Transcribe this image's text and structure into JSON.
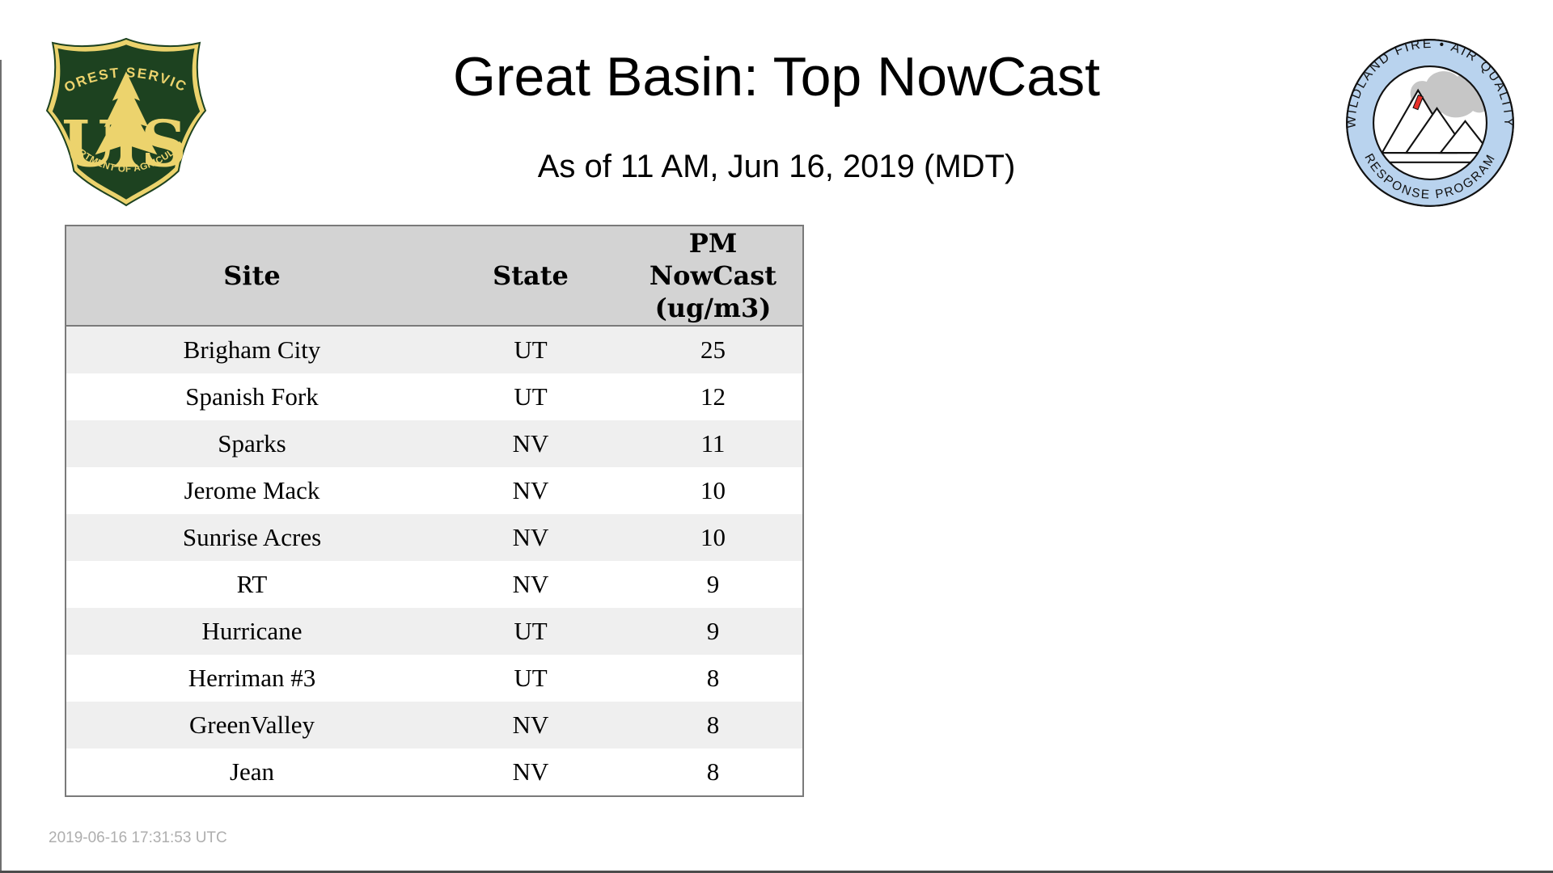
{
  "page": {
    "title": "Great Basin: Top NowCast",
    "subtitle": "As of 11 AM, Jun 16, 2019 (MDT)",
    "footer_timestamp": "2019-06-16 17:31:53 UTC"
  },
  "logos": {
    "usfs": {
      "top_text": "FOREST SERVICE",
      "letter_left": "U",
      "letter_right": "S",
      "bottom_text": "DEPARTMENT OF AGRICULTURE"
    },
    "wfaqrp": {
      "top_text": "WILDLAND FIRE • AIR QUALITY",
      "bottom_text": "RESPONSE PROGRAM"
    }
  },
  "table": {
    "columns": [
      {
        "label": "Site"
      },
      {
        "label": "State"
      },
      {
        "label": "PM\nNowCast\n(ug/m3)"
      }
    ],
    "rows": [
      {
        "site": "Brigham City",
        "state": "UT",
        "pm": "25"
      },
      {
        "site": "Spanish Fork",
        "state": "UT",
        "pm": "12"
      },
      {
        "site": "Sparks",
        "state": "NV",
        "pm": "11"
      },
      {
        "site": "Jerome Mack",
        "state": "NV",
        "pm": "10"
      },
      {
        "site": "Sunrise Acres",
        "state": "NV",
        "pm": "10"
      },
      {
        "site": "RT",
        "state": "NV",
        "pm": "9"
      },
      {
        "site": "Hurricane",
        "state": "UT",
        "pm": "9"
      },
      {
        "site": "Herriman #3",
        "state": "UT",
        "pm": "8"
      },
      {
        "site": "GreenValley",
        "state": "NV",
        "pm": "8"
      },
      {
        "site": "Jean",
        "state": "NV",
        "pm": "8"
      }
    ]
  },
  "theme": {
    "header_bg": "#d3d3d3",
    "row_alt": "#efefef",
    "table_border": "#7a7a7a",
    "timestamp_gray": "#aeaeae",
    "usfs_green": "#1d4220",
    "usfs_gold": "#ecd36d",
    "ring_blue": "#b9d3ee",
    "smoke_gray": "#c6c6c6",
    "flame_red": "#e8312a"
  }
}
